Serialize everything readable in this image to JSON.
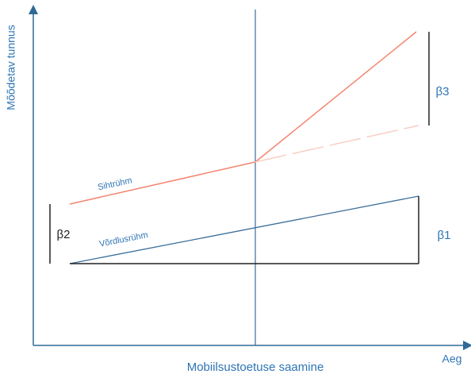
{
  "y_axis_label": "Mõõdetav tunnus",
  "x_axis_label": "Aeg",
  "intervention_label": "Mobiilsustoetuse saamine",
  "groups": {
    "target": "Sihtrühm",
    "control": "Võrdlusrühm"
  },
  "coefficients": {
    "b1": "β1",
    "b2": "β2",
    "b3": "β3"
  }
}
